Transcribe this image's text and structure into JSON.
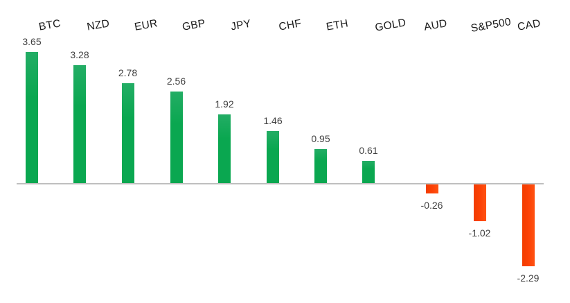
{
  "chart_data": {
    "type": "bar",
    "title": "",
    "xlabel": "",
    "ylabel": "",
    "categories": [
      "BTC",
      "NZD",
      "EUR",
      "GBP",
      "JPY",
      "CHF",
      "ETH",
      "GOLD",
      "AUD",
      "S&P500",
      "CAD"
    ],
    "values": [
      3.65,
      3.28,
      2.78,
      2.56,
      1.92,
      1.46,
      0.95,
      0.61,
      -0.26,
      -1.02,
      -2.29
    ],
    "value_labels": [
      "3.65",
      "3.28",
      "2.78",
      "2.56",
      "1.92",
      "1.46",
      "0.95",
      "0.61",
      "-0.26",
      "-1.02",
      "-2.29"
    ],
    "ylim": [
      -2.29,
      3.65
    ],
    "grid": false,
    "legend": "none",
    "category_labels_position": "top",
    "category_label_rotation_deg": -10,
    "colors": {
      "positive_bar": "#0aa750",
      "negative_bar": "#fb4005",
      "axis_line": "#bfbfbf",
      "category_label": "#1a1a1a",
      "value_label": "#3f3f3f",
      "background": "#ffffff"
    }
  }
}
